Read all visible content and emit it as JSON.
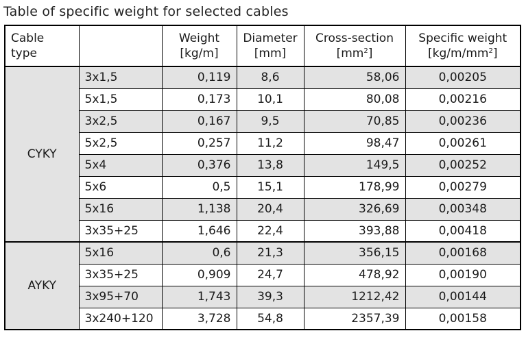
{
  "title": "Table of specific weight for selected cables",
  "headers": {
    "cable_type": "Cable type",
    "weight": "Weight",
    "weight_unit": "[kg/m]",
    "diameter": "Diameter",
    "diameter_unit": "[mm]",
    "cross_section": "Cross-section",
    "cross_section_unit": "[mm",
    "cross_section_unit_sup": "2",
    "cross_section_unit_end": "]",
    "specific_weight": "Specific weight",
    "specific_weight_unit": "[kg/m/mm",
    "specific_weight_unit_sup": "2",
    "specific_weight_unit_end": "]"
  },
  "groups": [
    {
      "type": "CYKY",
      "rows": [
        {
          "size": "3x1,5",
          "weight": "0,119",
          "diameter": "8,6",
          "cross_section": "58,06",
          "specific_weight": "0,00205"
        },
        {
          "size": "5x1,5",
          "weight": "0,173",
          "diameter": "10,1",
          "cross_section": "80,08",
          "specific_weight": "0,00216"
        },
        {
          "size": "3x2,5",
          "weight": "0,167",
          "diameter": "9,5",
          "cross_section": "70,85",
          "specific_weight": "0,00236"
        },
        {
          "size": "5x2,5",
          "weight": "0,257",
          "diameter": "11,2",
          "cross_section": "98,47",
          "specific_weight": "0,00261"
        },
        {
          "size": "5x4",
          "weight": "0,376",
          "diameter": "13,8",
          "cross_section": "149,5",
          "specific_weight": "0,00252"
        },
        {
          "size": "5x6",
          "weight": "0,5",
          "diameter": "15,1",
          "cross_section": "178,99",
          "specific_weight": "0,00279"
        },
        {
          "size": "5x16",
          "weight": "1,138",
          "diameter": "20,4",
          "cross_section": "326,69",
          "specific_weight": "0,00348"
        },
        {
          "size": "3x35+25",
          "weight": "1,646",
          "diameter": "22,4",
          "cross_section": "393,88",
          "specific_weight": "0,00418"
        }
      ]
    },
    {
      "type": "AYKY",
      "rows": [
        {
          "size": "5x16",
          "weight": "0,6",
          "diameter": "21,3",
          "cross_section": "356,15",
          "specific_weight": "0,00168"
        },
        {
          "size": "3x35+25",
          "weight": "0,909",
          "diameter": "24,7",
          "cross_section": "478,92",
          "specific_weight": "0,00190"
        },
        {
          "size": "3x95+70",
          "weight": "1,743",
          "diameter": "39,3",
          "cross_section": "1212,42",
          "specific_weight": "0,00144"
        },
        {
          "size": "3x240+120",
          "weight": "3,728",
          "diameter": "54,8",
          "cross_section": "2357,39",
          "specific_weight": "0,00158"
        }
      ]
    }
  ],
  "colors": {
    "shade": "#e3e3e3",
    "border": "#000000"
  }
}
